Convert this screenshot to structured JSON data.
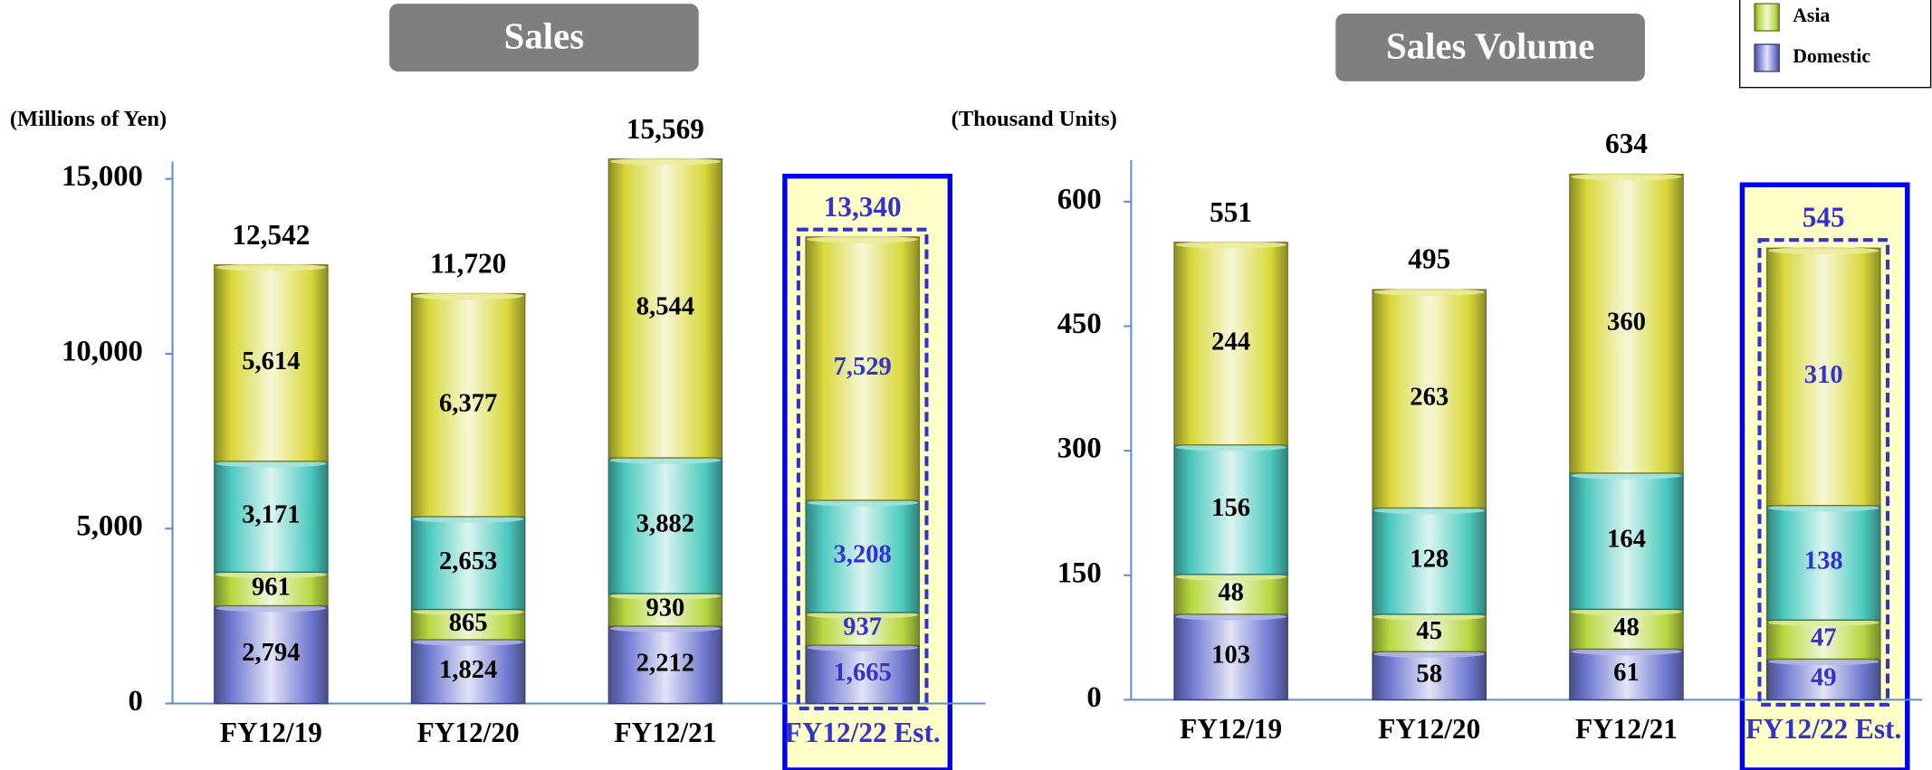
{
  "chart_data": [
    {
      "type": "stacked_bar",
      "title": "Sales",
      "y_label": "(Millions of Yen)",
      "categories": [
        "FY12/19",
        "FY12/20",
        "FY12/21",
        "FY12/22 Est."
      ],
      "series": [
        {
          "color": "#6f78d0",
          "values": [
            2794,
            1824,
            2212,
            1665
          ],
          "value_labels": [
            "2,794",
            "1,824",
            "2,212",
            "1,665"
          ]
        },
        {
          "color": "#b8d840",
          "values": [
            961,
            865,
            930,
            937
          ],
          "value_labels": [
            "961",
            "865",
            "930",
            "937"
          ]
        },
        {
          "color": "#4ccabe",
          "values": [
            3171,
            2653,
            3882,
            3208
          ],
          "value_labels": [
            "3,171",
            "2,653",
            "3,882",
            "3,208"
          ]
        },
        {
          "color": "#d8d83a",
          "values": [
            5614,
            6377,
            8544,
            7529
          ],
          "value_labels": [
            "5,614",
            "6,377",
            "8,544",
            "7,529"
          ]
        }
      ],
      "totals": [
        12542,
        11720,
        15569,
        13340
      ],
      "total_labels": [
        "12,542",
        "11,720",
        "15,569",
        "13,340"
      ],
      "ylim": [
        0,
        15500
      ],
      "yticks": [
        0,
        {
          "value": 5000,
          "label": "5,000"
        },
        {
          "value": 10000,
          "label": "10,000"
        },
        {
          "value": 15000,
          "label": "15,000"
        }
      ],
      "highlight_color": "#3333cc"
    },
    {
      "type": "stacked_bar",
      "title": "Sales Volume",
      "y_label": "(Thousand Units)",
      "categories": [
        "FY12/19",
        "FY12/20",
        "FY12/21",
        "FY12/22 Est."
      ],
      "series": [
        {
          "name": "Domestic",
          "color": "#6f78d0",
          "values": [
            103,
            58,
            61,
            49
          ]
        },
        {
          "name": "Asia",
          "color": "#b8d840",
          "values": [
            48,
            45,
            48,
            47
          ]
        },
        {
          "color": "#4ccabe",
          "values": [
            156,
            128,
            164,
            138
          ]
        },
        {
          "color": "#d8d83a",
          "values": [
            244,
            263,
            360,
            310
          ]
        }
      ],
      "totals": [
        551,
        495,
        634,
        545
      ],
      "ylim": [
        0,
        650
      ],
      "yticks": [
        0,
        150,
        300,
        450,
        600
      ],
      "highlight_color": "#3333cc"
    }
  ]
}
